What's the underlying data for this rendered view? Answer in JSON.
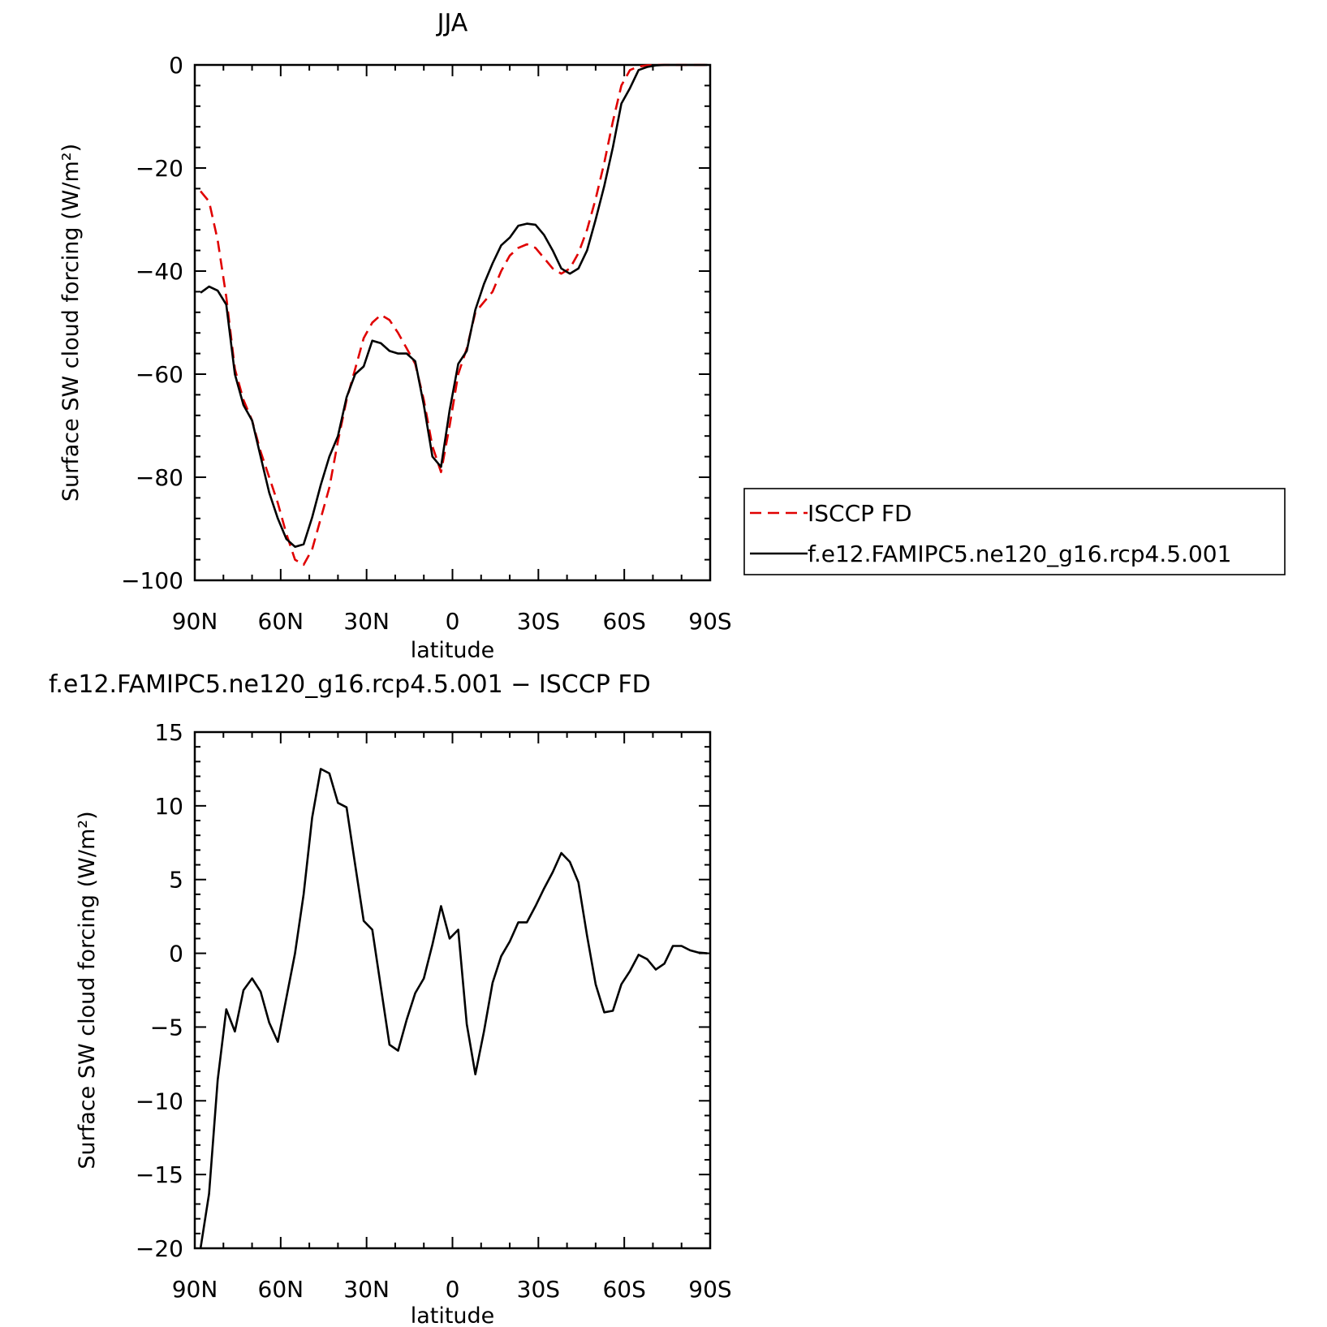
{
  "chart_data": [
    {
      "type": "line",
      "title": "JJA",
      "xlabel": "latitude",
      "ylabel": "Surface SW cloud forcing (W/m²)",
      "xlim": [
        90,
        -90
      ],
      "ylim": [
        -100,
        0
      ],
      "x_ticks": [
        90,
        60,
        30,
        0,
        -30,
        -60,
        -90
      ],
      "x_tick_labels": [
        "90N",
        "60N",
        "30N",
        "0",
        "30S",
        "60S",
        "90S"
      ],
      "y_ticks": [
        0,
        -20,
        -40,
        -60,
        -80,
        -100
      ],
      "y_tick_labels": [
        "0",
        "−20",
        "−40",
        "−60",
        "−80",
        "−100"
      ],
      "legend": {
        "placement": "right",
        "entries": [
          "ISCCP FD",
          "f.e12.FAMIPC5.ne120_g16.rcp4.5.001"
        ]
      },
      "series": [
        {
          "name": "ISCCP FD",
          "color": "#e00000",
          "dash": "dashed",
          "x": [
            88,
            85,
            82,
            79,
            76,
            73,
            70,
            67,
            64,
            61,
            58,
            55,
            52,
            49,
            46,
            43,
            40,
            37,
            34,
            31,
            28,
            25,
            22,
            19,
            16,
            13,
            10,
            7,
            4,
            1,
            -2,
            -5,
            -8,
            -11,
            -14,
            -17,
            -20,
            -23,
            -26,
            -29,
            -32,
            -35,
            -38,
            -41,
            -44,
            -47,
            -50,
            -53,
            -56,
            -59,
            -62,
            -65,
            -68,
            -71,
            -74,
            -77,
            -80,
            -83,
            -86,
            -89
          ],
          "y": [
            -24.5,
            -26.5,
            -34,
            -45,
            -59,
            -65,
            -69,
            -75,
            -80,
            -85,
            -91,
            -96,
            -97,
            -94,
            -88,
            -82,
            -73,
            -65,
            -59,
            -53,
            -50,
            -48.5,
            -49.5,
            -52,
            -55,
            -58,
            -65,
            -74,
            -79,
            -70,
            -60,
            -55,
            -48,
            -46,
            -44,
            -40,
            -37,
            -35.5,
            -34.8,
            -35.5,
            -37.5,
            -39.5,
            -40.5,
            -39.5,
            -36.5,
            -32,
            -26,
            -19,
            -11,
            -4,
            -1,
            -0.3,
            -0.1,
            0,
            0,
            0,
            0,
            0,
            0,
            0
          ]
        },
        {
          "name": "f.e12.FAMIPC5.ne120_g16.rcp4.5.001",
          "color": "#000000",
          "dash": "solid",
          "x": [
            88,
            85,
            82,
            79,
            76,
            73,
            70,
            67,
            64,
            61,
            58,
            55,
            52,
            49,
            46,
            43,
            40,
            37,
            34,
            31,
            28,
            25,
            22,
            19,
            16,
            13,
            10,
            7,
            4,
            1,
            -2,
            -5,
            -8,
            -11,
            -14,
            -17,
            -20,
            -23,
            -26,
            -29,
            -32,
            -35,
            -38,
            -41,
            -44,
            -47,
            -50,
            -53,
            -56,
            -59,
            -62,
            -65,
            -68,
            -71,
            -74,
            -77,
            -80,
            -83,
            -86,
            -89
          ],
          "y": [
            -44.2,
            -43,
            -43.8,
            -46.5,
            -60,
            -66,
            -69,
            -76,
            -83,
            -88,
            -92,
            -93.5,
            -93,
            -87.8,
            -81.5,
            -76,
            -72,
            -64.5,
            -60,
            -58.5,
            -53.5,
            -54,
            -55.5,
            -56,
            -56,
            -57.5,
            -66,
            -76,
            -78,
            -67,
            -58,
            -55.5,
            -47.5,
            -42.5,
            -38.5,
            -35,
            -33.5,
            -31.2,
            -30.8,
            -31,
            -33,
            -36,
            -39.5,
            -40.5,
            -39.5,
            -36,
            -30,
            -23.5,
            -16,
            -7.5,
            -4.5,
            -1,
            -0.4,
            -0.1,
            0,
            0,
            0,
            0,
            0,
            0
          ]
        }
      ]
    },
    {
      "type": "line",
      "title": "f.e12.FAMIPC5.ne120_g16.rcp4.5.001 − ISCCP FD",
      "xlabel": "latitude",
      "ylabel": "Surface SW cloud forcing (W/m²)",
      "xlim": [
        90,
        -90
      ],
      "ylim": [
        -20,
        15
      ],
      "x_ticks": [
        90,
        60,
        30,
        0,
        -30,
        -60,
        -90
      ],
      "x_tick_labels": [
        "90N",
        "60N",
        "30N",
        "0",
        "30S",
        "60S",
        "90S"
      ],
      "y_ticks": [
        15,
        10,
        5,
        0,
        -5,
        -10,
        -15,
        -20
      ],
      "y_tick_labels": [
        "15",
        "10",
        "5",
        "0",
        "−5",
        "−10",
        "−15",
        "−20"
      ],
      "series": [
        {
          "color": "#000000",
          "dash": "solid",
          "x": [
            88,
            85,
            82,
            79,
            76,
            73,
            70,
            67,
            64,
            61,
            58,
            55,
            52,
            49,
            46,
            43,
            40,
            37,
            34,
            31,
            28,
            25,
            22,
            19,
            16,
            13,
            10,
            7,
            4,
            1,
            -2,
            -5,
            -8,
            -11,
            -14,
            -17,
            -20,
            -23,
            -26,
            -29,
            -32,
            -35,
            -38,
            -41,
            -44,
            -47,
            -50,
            -53,
            -56,
            -59,
            -62,
            -65,
            -68,
            -71,
            -74,
            -77,
            -80,
            -83,
            -86,
            -89
          ],
          "y": [
            -20,
            -16.3,
            -8.6,
            -3.8,
            -5.3,
            -2.5,
            -1.7,
            -2.6,
            -4.7,
            -6,
            -3,
            0,
            4,
            9.2,
            12.5,
            12.2,
            10.2,
            9.9,
            6,
            2.2,
            1.6,
            -2.3,
            -6.2,
            -6.6,
            -4.5,
            -2.7,
            -1.7,
            0.6,
            3.2,
            1,
            1.6,
            -4.8,
            -8.2,
            -5.3,
            -2,
            -0.2,
            0.8,
            2.1,
            2.1,
            3.2,
            4.4,
            5.5,
            6.8,
            6.2,
            4.8,
            1.2,
            -2.1,
            -4,
            -3.9,
            -2.1,
            -1.2,
            -0.1,
            -0.4,
            -1.1,
            -0.7,
            0.5,
            0.5,
            0.2,
            0.05,
            0
          ]
        }
      ]
    }
  ]
}
